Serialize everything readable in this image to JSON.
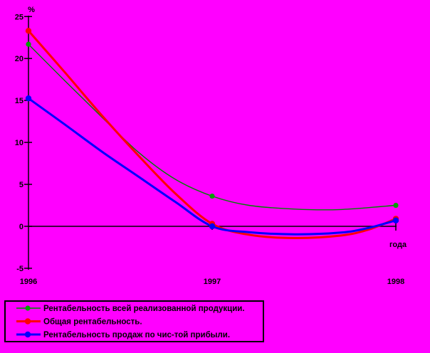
{
  "window": {
    "title": "Rentability line chart"
  },
  "colors": {
    "background": "#FF00FF",
    "axis": "#000000",
    "text": "#000000",
    "legend_border": "#000000"
  },
  "axis_labels": {
    "y_unit": "%",
    "x_unit": "года"
  },
  "chart_data": {
    "type": "line",
    "title": "",
    "xlabel": "года",
    "ylabel": "%",
    "xlim": [
      1996,
      1998
    ],
    "ylim": [
      -5,
      25
    ],
    "grid": false,
    "legend_position": "bottom-left",
    "x_ticks": [
      1996,
      1997,
      1998
    ],
    "x_tick_labels": [
      "1996",
      "1997",
      "1998"
    ],
    "y_ticks": [
      25,
      20,
      15,
      10,
      5,
      0,
      -5
    ],
    "y_tick_labels": [
      "25",
      "20",
      "15",
      "10",
      "5",
      "0",
      "-5"
    ],
    "categories": [
      1996,
      1997,
      1998
    ],
    "series": [
      {
        "name": "Рентабельность всей реализованной продукции.",
        "color": "#008000",
        "marker_color": "#00A000",
        "line_width": 1.4,
        "marker_radius": 3.6,
        "values": [
          21.7,
          3.6,
          2.5
        ],
        "curve": [
          [
            1996,
            21.7
          ],
          [
            1996.2,
            17.3
          ],
          [
            1996.4,
            13.0
          ],
          [
            1996.6,
            8.8
          ],
          [
            1996.8,
            5.6
          ],
          [
            1997,
            3.6
          ],
          [
            1997.2,
            2.5
          ],
          [
            1997.45,
            2.05
          ],
          [
            1997.7,
            2.0
          ],
          [
            1998,
            2.5
          ]
        ]
      },
      {
        "name": "Общая рентабельность.",
        "color": "#FF0000",
        "marker_color": "#FF0000",
        "line_width": 3,
        "marker_radius": 4.2,
        "values": [
          23.3,
          0.3,
          0.9
        ],
        "curve": [
          [
            1996,
            23.3
          ],
          [
            1996.2,
            18.3
          ],
          [
            1996.4,
            13.2
          ],
          [
            1996.6,
            8.4
          ],
          [
            1996.8,
            3.9
          ],
          [
            1997,
            0.3
          ],
          [
            1997.2,
            -1.0
          ],
          [
            1997.45,
            -1.4
          ],
          [
            1997.7,
            -1.1
          ],
          [
            1997.85,
            -0.4
          ],
          [
            1998,
            0.9
          ]
        ]
      },
      {
        "name": "Рентабельность продаж по чис-той прибыли.",
        "color": "#0000FF",
        "marker_color": "#0000FF",
        "line_width": 3,
        "marker_radius": 4.2,
        "values": [
          15.25,
          0.0,
          0.7
        ],
        "curve": [
          [
            1996,
            15.25
          ],
          [
            1996.2,
            12.1
          ],
          [
            1996.4,
            8.9
          ],
          [
            1996.6,
            5.9
          ],
          [
            1996.8,
            2.9
          ],
          [
            1997,
            0.0
          ],
          [
            1997.2,
            -0.7
          ],
          [
            1997.45,
            -0.95
          ],
          [
            1997.7,
            -0.75
          ],
          [
            1997.85,
            -0.2
          ],
          [
            1998,
            0.7
          ]
        ]
      }
    ]
  }
}
